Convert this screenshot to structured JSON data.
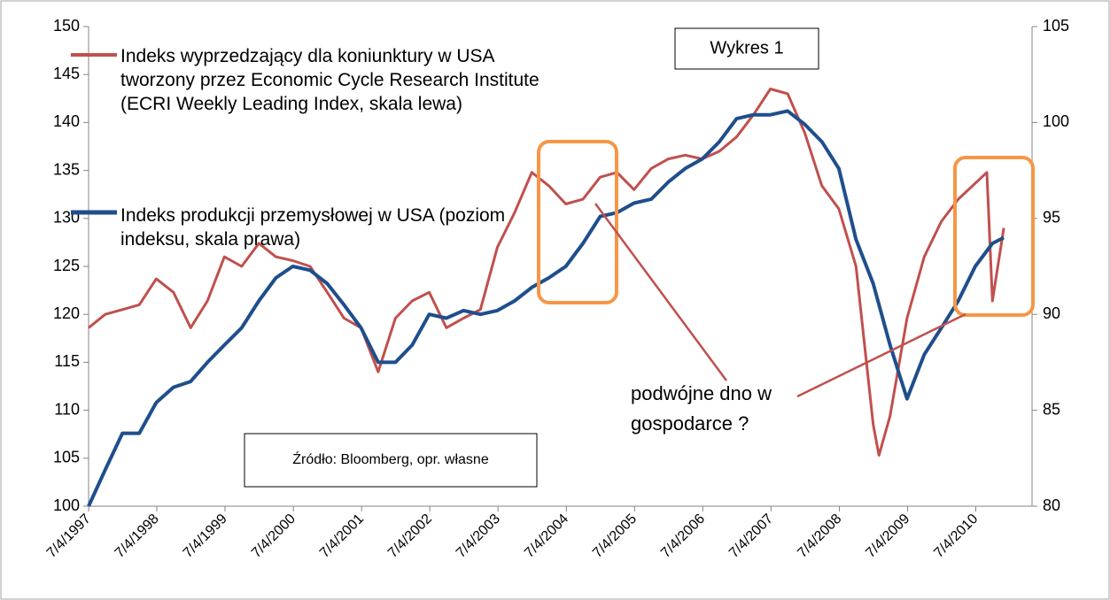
{
  "chart_data": {
    "type": "line",
    "annotations": {
      "chart_label": "Wykres 1",
      "source": "Źródło: Bloomberg, opr. własne",
      "note": "podwójne dno w gospodarce ?"
    },
    "xlim": [
      "1997-07-04",
      "2011-05-01"
    ],
    "xticks": [
      {
        "value": "1997-07-04",
        "label": "7/4/1997"
      },
      {
        "value": "1998-07-04",
        "label": "7/4/1998"
      },
      {
        "value": "1999-07-04",
        "label": "7/4/1999"
      },
      {
        "value": "2000-07-04",
        "label": "7/4/2000"
      },
      {
        "value": "2001-07-04",
        "label": "7/4/2001"
      },
      {
        "value": "2002-07-04",
        "label": "7/4/2002"
      },
      {
        "value": "2003-07-04",
        "label": "7/4/2003"
      },
      {
        "value": "2004-07-04",
        "label": "7/4/2004"
      },
      {
        "value": "2005-07-04",
        "label": "7/4/2005"
      },
      {
        "value": "2006-07-04",
        "label": "7/4/2006"
      },
      {
        "value": "2007-07-04",
        "label": "7/4/2007"
      },
      {
        "value": "2008-07-04",
        "label": "7/4/2008"
      },
      {
        "value": "2009-07-04",
        "label": "7/4/2009"
      },
      {
        "value": "2010-07-04",
        "label": "7/4/2010"
      }
    ],
    "ylim": [
      100,
      150
    ],
    "yticks": [
      100,
      105,
      110,
      115,
      120,
      125,
      130,
      135,
      140,
      145,
      150
    ],
    "y2lim": [
      80,
      105
    ],
    "y2ticks": [
      80,
      85,
      90,
      95,
      100,
      105
    ],
    "grid": false,
    "series": [
      {
        "name": "Indeks wyprzedzający dla koniunktury w USA tworzony przez Economic Cycle Research Institute (ECRI Weekly Leading Index, skala lewa)",
        "color": "#c0504d",
        "axis": "y",
        "x": [
          "1997-07-04",
          "1997-10-01",
          "1998-01-01",
          "1998-04-01",
          "1998-07-01",
          "1998-10-01",
          "1999-01-01",
          "1999-04-01",
          "1999-07-01",
          "1999-10-01",
          "2000-01-01",
          "2000-04-01",
          "2000-07-01",
          "2000-10-01",
          "2001-01-01",
          "2001-04-01",
          "2001-07-01",
          "2001-10-01",
          "2002-01-01",
          "2002-04-01",
          "2002-07-01",
          "2002-10-01",
          "2003-01-01",
          "2003-04-01",
          "2003-07-01",
          "2003-10-01",
          "2004-01-01",
          "2004-04-01",
          "2004-07-01",
          "2004-10-01",
          "2005-01-01",
          "2005-04-01",
          "2005-07-01",
          "2005-10-01",
          "2006-01-01",
          "2006-04-01",
          "2006-07-01",
          "2006-10-01",
          "2007-01-01",
          "2007-04-01",
          "2007-07-01",
          "2007-10-01",
          "2008-01-01",
          "2008-04-01",
          "2008-07-01",
          "2008-10-01",
          "2009-01-01",
          "2009-02-01",
          "2009-04-01",
          "2009-07-01",
          "2009-10-01",
          "2010-01-01",
          "2010-04-01",
          "2010-09-01",
          "2010-10-01",
          "2010-12-01"
        ],
        "values": [
          118.6,
          120,
          120.5,
          121,
          123.7,
          122.3,
          118.6,
          121.4,
          126,
          125,
          127.4,
          126,
          125.6,
          125,
          122.3,
          119.6,
          118.6,
          114,
          119.6,
          121.4,
          122.3,
          118.6,
          119.6,
          120.5,
          127,
          130.6,
          134.8,
          133.4,
          131.5,
          132,
          134.3,
          134.8,
          133,
          135.2,
          136.2,
          136.6,
          136.2,
          137,
          138.5,
          140.8,
          143.5,
          143,
          138.9,
          133.4,
          131,
          125,
          108.5,
          105.3,
          109.4,
          119.6,
          126,
          129.7,
          132,
          134.8,
          121.4,
          129
        ]
      },
      {
        "name": "Indeks produkcji przemysłowej w USA (poziom indeksu, skala prawa)",
        "color": "#1f4e8c",
        "axis": "y2",
        "x": [
          "1997-07-04",
          "1997-10-01",
          "1998-01-01",
          "1998-04-01",
          "1998-07-01",
          "1998-10-01",
          "1999-01-01",
          "1999-04-01",
          "1999-07-01",
          "1999-10-01",
          "2000-01-01",
          "2000-04-01",
          "2000-07-01",
          "2000-10-01",
          "2001-01-01",
          "2001-04-01",
          "2001-07-01",
          "2001-10-01",
          "2002-01-01",
          "2002-04-01",
          "2002-07-01",
          "2002-10-01",
          "2003-01-01",
          "2003-04-01",
          "2003-07-01",
          "2003-10-01",
          "2004-01-01",
          "2004-04-01",
          "2004-07-01",
          "2004-10-01",
          "2005-01-01",
          "2005-04-01",
          "2005-07-01",
          "2005-10-01",
          "2006-01-01",
          "2006-04-01",
          "2006-07-01",
          "2006-10-01",
          "2007-01-01",
          "2007-04-01",
          "2007-07-01",
          "2007-10-01",
          "2008-01-01",
          "2008-04-01",
          "2008-07-01",
          "2008-10-01",
          "2009-01-01",
          "2009-04-01",
          "2009-07-01",
          "2009-10-01",
          "2010-01-01",
          "2010-04-01",
          "2010-07-01",
          "2010-10-01",
          "2010-12-01"
        ],
        "values": [
          80,
          81.9,
          83.8,
          83.8,
          85.4,
          86.2,
          86.5,
          87.5,
          88.4,
          89.3,
          90.7,
          91.9,
          92.5,
          92.3,
          91.6,
          90.5,
          89.3,
          87.5,
          87.5,
          88.4,
          90,
          89.8,
          90.2,
          90,
          90.2,
          90.7,
          91.4,
          91.9,
          92.5,
          93.7,
          95.1,
          95.3,
          95.8,
          96,
          96.9,
          97.6,
          98.1,
          99,
          100.2,
          100.4,
          100.4,
          100.6,
          99.9,
          99,
          97.6,
          93.9,
          91.6,
          88.4,
          85.6,
          87.9,
          89.3,
          90.7,
          92.5,
          93.7,
          94
        ]
      }
    ]
  }
}
